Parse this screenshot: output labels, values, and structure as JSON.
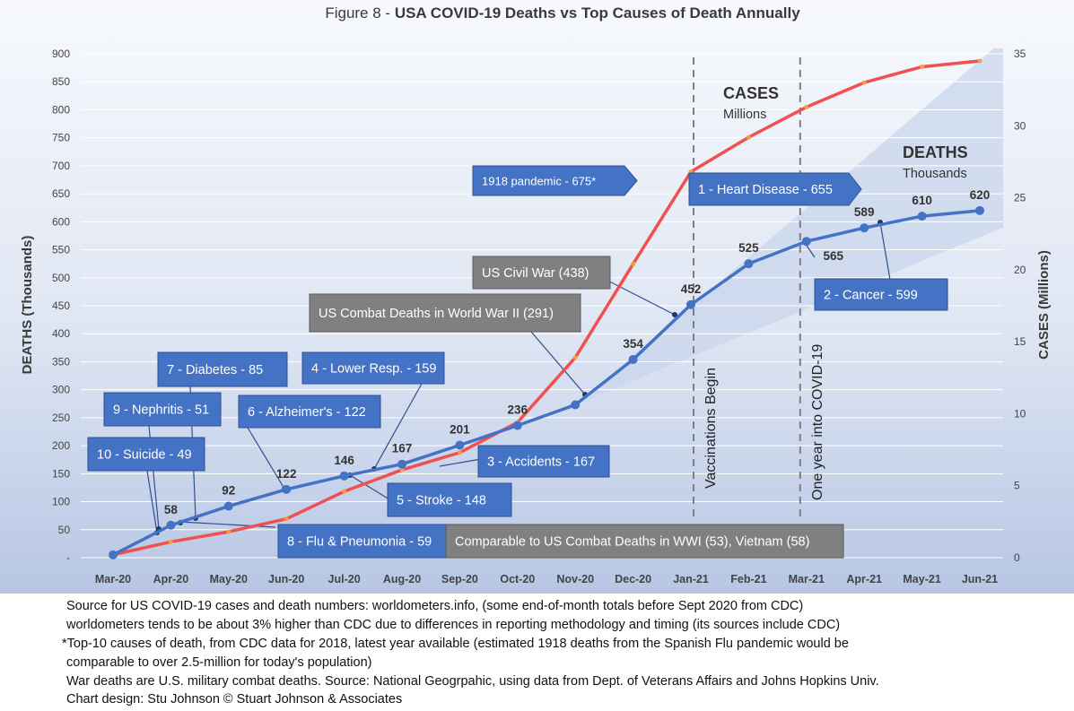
{
  "title": {
    "prefix": "Figure 8 - ",
    "main": "USA COVID-19 Deaths vs Top Causes of Death Annually"
  },
  "chart_data": {
    "type": "line",
    "categories": [
      "Mar-20",
      "Apr-20",
      "May-20",
      "Jun-20",
      "Jul-20",
      "Aug-20",
      "Sep-20",
      "Oct-20",
      "Nov-20",
      "Dec-20",
      "Jan-21",
      "Feb-21",
      "Mar-21",
      "Apr-21",
      "May-21",
      "Jun-21"
    ],
    "y_left": {
      "label": "DEATHS (Thousands)",
      "ticks": [
        "-",
        "50",
        "100",
        "150",
        "200",
        "250",
        "300",
        "350",
        "400",
        "450",
        "500",
        "550",
        "600",
        "650",
        "700",
        "750",
        "800",
        "850",
        "900"
      ],
      "range": [
        0,
        900
      ]
    },
    "y_right": {
      "label": "CASES (Millions)",
      "ticks": [
        "0",
        "5",
        "10",
        "15",
        "20",
        "25",
        "30",
        "35"
      ],
      "range": [
        0,
        35
      ]
    },
    "series": [
      {
        "name": "DEATHS",
        "unit": "Thousands",
        "axis": "left",
        "color": "#4472c4",
        "values": [
          5,
          58,
          92,
          122,
          146,
          167,
          201,
          236,
          273,
          354,
          452,
          525,
          565,
          589,
          610,
          620
        ],
        "data_labels": [
          "",
          "58",
          "92",
          "122",
          "146",
          "167",
          "201",
          "236",
          "",
          "354",
          "452",
          "525",
          "565",
          "589",
          "610",
          "620"
        ]
      },
      {
        "name": "CASES",
        "unit": "Millions",
        "axis": "right",
        "color": "#f05050",
        "values": [
          0.2,
          1.1,
          1.8,
          2.7,
          4.6,
          6.1,
          7.3,
          9.4,
          13.9,
          20.4,
          26.8,
          29.2,
          31.3,
          33.0,
          34.1,
          34.5
        ]
      }
    ],
    "markers": [
      {
        "label": "Vaccinations Begin",
        "category": "Jan-21"
      },
      {
        "label": "One year into COVID-19",
        "category": "Mar-21"
      }
    ],
    "reference_boxes": [
      {
        "label": "1918 pandemic - 675*",
        "value": 675,
        "style": "arrow"
      },
      {
        "label": "1 - Heart Disease - 655",
        "value": 655,
        "style": "arrow"
      },
      {
        "label": "2 - Cancer - 599",
        "value": 599,
        "style": "blue"
      },
      {
        "label": "US Civil War (438)",
        "value": 438,
        "style": "gray"
      },
      {
        "label": "US Combat Deaths in World War II (291)",
        "value": 291,
        "style": "gray"
      },
      {
        "label": "3 - Accidents - 167",
        "value": 167,
        "style": "blue"
      },
      {
        "label": "4 - Lower Resp.  - 159",
        "value": 159,
        "style": "blue"
      },
      {
        "label": "5 -  Stroke - 148",
        "value": 148,
        "style": "blue"
      },
      {
        "label": "6 - Alzheimer's - 122",
        "value": 122,
        "style": "blue"
      },
      {
        "label": "7 - Diabetes - 85",
        "value": 85,
        "style": "blue"
      },
      {
        "label": "8 - Flu & Pneumonia - 59",
        "value": 59,
        "style": "blue"
      },
      {
        "label": "9 - Nephritis - 51",
        "value": 51,
        "style": "blue"
      },
      {
        "label": "10 - Suicide - 49",
        "value": 49,
        "style": "blue"
      },
      {
        "label": "Comparable to US Combat Deaths in WWI (53), Vietnam (58)",
        "value": 58,
        "style": "gray"
      }
    ],
    "annotations": {
      "cases_word": "CASES",
      "cases_unit": "Millions",
      "deaths_word": "DEATHS",
      "deaths_unit": "Thousands"
    },
    "grid": "horizontal"
  },
  "footer": {
    "lines": [
      "Source for US COVID-19 cases and death numbers: worldometers.info, (some end-of-month totals before Sept 2020 from CDC)",
      "worldometers tends to be about 3% higher than CDC due to differences in reporting methodology and timing (its sources include CDC)",
      "*Top-10 causes of death, from CDC data for 2018, latest year available  (estimated 1918 deaths from the Spanish Flu pandemic would be",
      "comparable to over 2.5-million for today's population)",
      "War deaths are U.S. military combat deaths.  Source: National Geogrpahic, using data from Dept. of Veterans Affairs and Johns Hopkins Univ.",
      "Chart design: Stu Johnson © Stuart Johnson & Associates"
    ]
  }
}
